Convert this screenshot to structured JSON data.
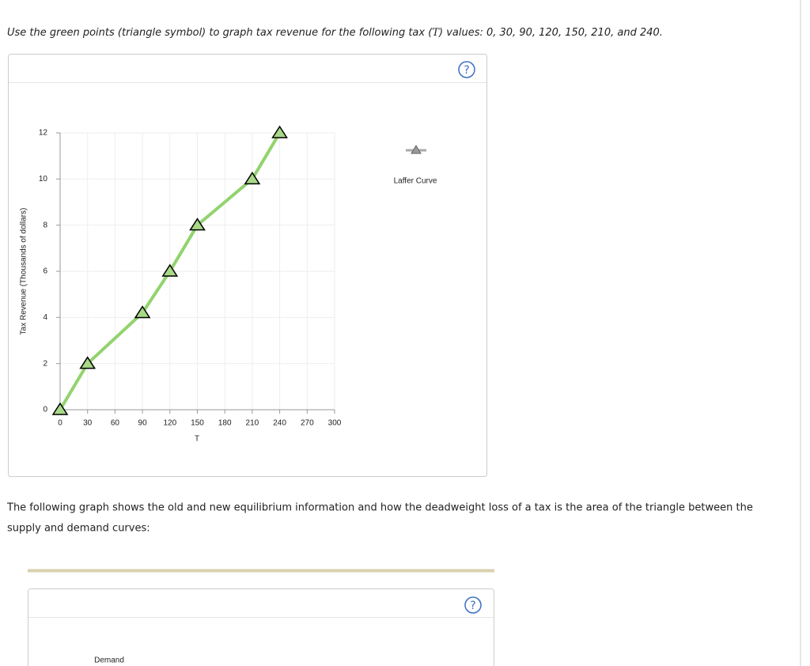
{
  "instruction_before": "Use the green points (triangle symbol) to graph tax revenue for the following tax (",
  "instruction_variable": "T",
  "instruction_after": ") values: 0, 30, 90, 120, 150, 210, and 240.",
  "help_label": "?",
  "chart_data": {
    "type": "line",
    "x_label": "T",
    "y_label": "Tax Revenue (Thousands of dollars)",
    "x": [
      0,
      30,
      90,
      120,
      150,
      210,
      240
    ],
    "series": [
      {
        "name": "Laffer Curve",
        "color": "#92d36e",
        "values": [
          0,
          2,
          4.2,
          6,
          8,
          10,
          12
        ]
      }
    ],
    "xlim": [
      0,
      300
    ],
    "xticks": [
      0,
      30,
      60,
      90,
      120,
      150,
      180,
      210,
      240,
      270,
      300
    ],
    "ylim": [
      0,
      12
    ],
    "yticks": [
      0,
      2,
      4,
      6,
      8,
      10,
      12
    ],
    "grid": true
  },
  "paragraph": [
    "The following graph shows the old and new equilibrium information and how the deadweight loss of a tax is the area of the triangle between the",
    "supply and demand curves:"
  ],
  "second_panel_label": "Demand"
}
